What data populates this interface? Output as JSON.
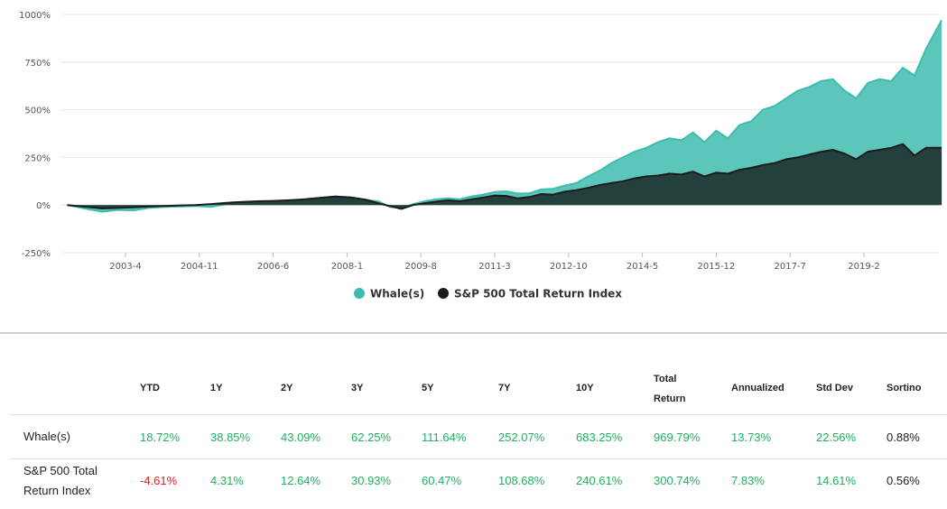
{
  "chart_data": {
    "type": "area",
    "title": "",
    "xlabel": "",
    "ylabel": "",
    "ylim": [
      -250,
      1000
    ],
    "y_ticks": [
      "1000%",
      "750%",
      "500%",
      "250%",
      "0%",
      "-250%"
    ],
    "x_ticks": [
      "2003-4",
      "2004-11",
      "2006-6",
      "2008-1",
      "2009-8",
      "2011-3",
      "2012-10",
      "2014-5",
      "2015-12",
      "2017-7",
      "2019-2"
    ],
    "grid": true,
    "legend_position": "bottom-center",
    "series": [
      {
        "name": "Whale(s)",
        "color": "#3dbdaf",
        "x": [
          "2002-1",
          "2002-6",
          "2002-10",
          "2003-2",
          "2003-6",
          "2003-10",
          "2004-2",
          "2004-6",
          "2004-10",
          "2005-2",
          "2005-6",
          "2005-10",
          "2006-2",
          "2006-6",
          "2006-10",
          "2007-2",
          "2007-6",
          "2007-10",
          "2008-2",
          "2008-6",
          "2008-9",
          "2008-12",
          "2009-3",
          "2009-6",
          "2009-9",
          "2009-12",
          "2010-3",
          "2010-6",
          "2010-9",
          "2010-12",
          "2011-3",
          "2011-6",
          "2011-9",
          "2011-12",
          "2012-3",
          "2012-6",
          "2012-9",
          "2012-12",
          "2013-3",
          "2013-6",
          "2013-9",
          "2013-12",
          "2014-3",
          "2014-6",
          "2014-9",
          "2014-12",
          "2015-3",
          "2015-6",
          "2015-9",
          "2015-12",
          "2016-3",
          "2016-6",
          "2016-9",
          "2016-12",
          "2017-3",
          "2017-6",
          "2017-9",
          "2017-12",
          "2018-3",
          "2018-6",
          "2018-9",
          "2018-12",
          "2019-3",
          "2019-6",
          "2019-9",
          "2019-12",
          "2020-3",
          "2020-6",
          "2020-10"
        ],
        "values": [
          0,
          -20,
          -35,
          -25,
          -28,
          -15,
          -10,
          -8,
          -5,
          -10,
          5,
          12,
          18,
          15,
          22,
          30,
          38,
          45,
          40,
          25,
          20,
          -10,
          -15,
          5,
          20,
          30,
          35,
          30,
          45,
          55,
          68,
          72,
          60,
          62,
          82,
          85,
          102,
          115,
          150,
          180,
          220,
          250,
          280,
          300,
          330,
          350,
          340,
          380,
          330,
          390,
          350,
          420,
          440,
          500,
          520,
          560,
          600,
          620,
          650,
          660,
          600,
          560,
          640,
          660,
          650,
          720,
          680,
          820,
          970
        ]
      },
      {
        "name": "S&P 500 Total Return Index",
        "color": "#1c1c1c",
        "x": [
          "2002-1",
          "2002-6",
          "2002-10",
          "2003-2",
          "2003-6",
          "2003-10",
          "2004-2",
          "2004-6",
          "2004-10",
          "2005-2",
          "2005-6",
          "2005-10",
          "2006-2",
          "2006-6",
          "2006-10",
          "2007-2",
          "2007-6",
          "2007-10",
          "2008-2",
          "2008-6",
          "2008-9",
          "2008-12",
          "2009-3",
          "2009-6",
          "2009-9",
          "2009-12",
          "2010-3",
          "2010-6",
          "2010-9",
          "2010-12",
          "2011-3",
          "2011-6",
          "2011-9",
          "2011-12",
          "2012-3",
          "2012-6",
          "2012-9",
          "2012-12",
          "2013-3",
          "2013-6",
          "2013-9",
          "2013-12",
          "2014-3",
          "2014-6",
          "2014-9",
          "2014-12",
          "2015-3",
          "2015-6",
          "2015-9",
          "2015-12",
          "2016-3",
          "2016-6",
          "2016-9",
          "2016-12",
          "2017-3",
          "2017-6",
          "2017-9",
          "2017-12",
          "2018-3",
          "2018-6",
          "2018-9",
          "2018-12",
          "2019-3",
          "2019-6",
          "2019-9",
          "2019-12",
          "2020-3",
          "2020-6",
          "2020-10"
        ],
        "values": [
          0,
          -10,
          -18,
          -15,
          -12,
          -8,
          -5,
          -2,
          0,
          5,
          12,
          16,
          20,
          22,
          25,
          30,
          38,
          45,
          40,
          28,
          10,
          -5,
          -20,
          0,
          10,
          18,
          25,
          20,
          30,
          40,
          50,
          48,
          35,
          42,
          58,
          55,
          70,
          78,
          90,
          105,
          115,
          125,
          140,
          150,
          155,
          165,
          160,
          175,
          150,
          170,
          165,
          185,
          195,
          210,
          220,
          240,
          250,
          265,
          280,
          290,
          270,
          240,
          280,
          290,
          300,
          320,
          260,
          300,
          300
        ]
      }
    ]
  },
  "legend": [
    {
      "label": "Whale(s)",
      "color": "#3dbdaf"
    },
    {
      "label": "S&P 500 Total Return Index",
      "color": "#1c1c1c"
    }
  ],
  "table": {
    "headers": [
      "",
      "YTD",
      "1Y",
      "2Y",
      "3Y",
      "5Y",
      "7Y",
      "10Y",
      "Total Return",
      "Annualized",
      "Std Dev",
      "Sortino"
    ],
    "rows": [
      {
        "name": "Whale(s)",
        "cells": [
          {
            "v": "18.72%",
            "c": "pos"
          },
          {
            "v": "38.85%",
            "c": "pos"
          },
          {
            "v": "43.09%",
            "c": "pos"
          },
          {
            "v": "62.25%",
            "c": "pos"
          },
          {
            "v": "111.64%",
            "c": "pos"
          },
          {
            "v": "252.07%",
            "c": "pos"
          },
          {
            "v": "683.25%",
            "c": "pos"
          },
          {
            "v": "969.79%",
            "c": "pos"
          },
          {
            "v": "13.73%",
            "c": "pos"
          },
          {
            "v": "22.56%",
            "c": "pos"
          },
          {
            "v": "0.88%",
            "c": "neu"
          }
        ]
      },
      {
        "name": "S&P 500 Total Return Index",
        "cells": [
          {
            "v": "-4.61%",
            "c": "neg"
          },
          {
            "v": "4.31%",
            "c": "pos"
          },
          {
            "v": "12.64%",
            "c": "pos"
          },
          {
            "v": "30.93%",
            "c": "pos"
          },
          {
            "v": "60.47%",
            "c": "pos"
          },
          {
            "v": "108.68%",
            "c": "pos"
          },
          {
            "v": "240.61%",
            "c": "pos"
          },
          {
            "v": "300.74%",
            "c": "pos"
          },
          {
            "v": "7.83%",
            "c": "pos"
          },
          {
            "v": "14.61%",
            "c": "pos"
          },
          {
            "v": "0.56%",
            "c": "neu"
          }
        ]
      }
    ]
  }
}
